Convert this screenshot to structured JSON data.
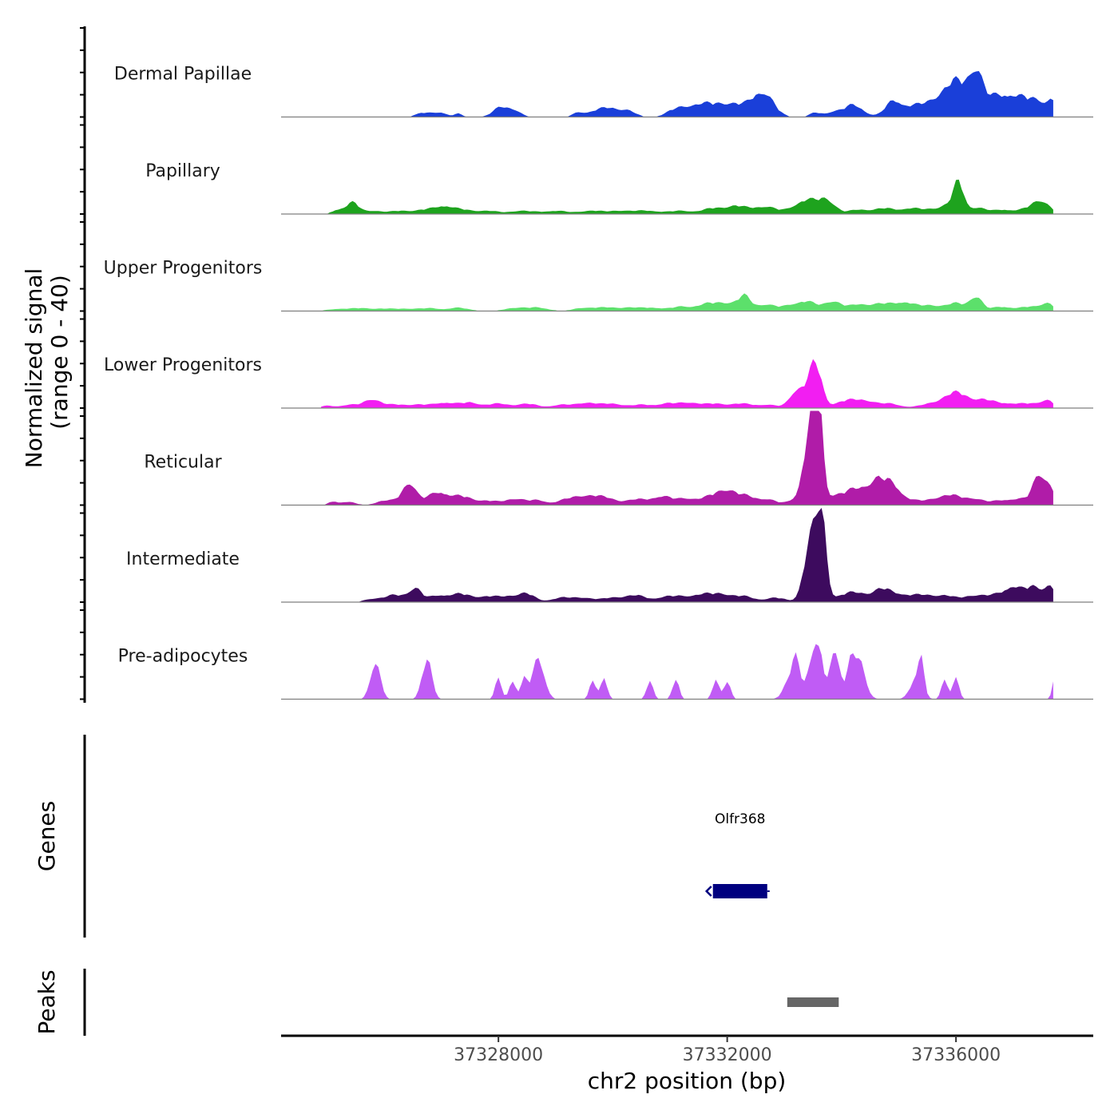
{
  "chart_data": {
    "type": "area",
    "chromosome": "chr2",
    "xlabel": "chr2 position (bp)",
    "ylabel_line1": "Normalized signal",
    "ylabel_line2": "(range 0 - 40)",
    "ylim": [
      0,
      40
    ],
    "xlim": [
      37324200,
      37338400
    ],
    "x_ticks": [
      37328000,
      37332000,
      37336000
    ],
    "x_tick_labels": [
      "37328000",
      "37332000",
      "37336000"
    ],
    "data_start": 37324900,
    "data_end": 37337700,
    "bin_size": 100,
    "tracks": [
      {
        "name": "Dermal Papillae",
        "color": "#1a3fd9",
        "peaks": [
          [
            37326700,
            2,
            200
          ],
          [
            37327000,
            2,
            150
          ],
          [
            37327300,
            1.5,
            100
          ],
          [
            37328050,
            4.5,
            200
          ],
          [
            37328300,
            2.5,
            150
          ],
          [
            37329400,
            2,
            150
          ],
          [
            37329700,
            2.5,
            200
          ],
          [
            37329950,
            3.5,
            200
          ],
          [
            37330250,
            3,
            200
          ],
          [
            37331050,
            2,
            200
          ],
          [
            37331350,
            4,
            300
          ],
          [
            37331750,
            5,
            350
          ],
          [
            37332150,
            4.5,
            300
          ],
          [
            37332650,
            8,
            250
          ],
          [
            37332550,
            4,
            250
          ],
          [
            37333550,
            2,
            150
          ],
          [
            37333850,
            2,
            150
          ],
          [
            37334200,
            5.5,
            250
          ],
          [
            37334900,
            6.5,
            200
          ],
          [
            37335250,
            4,
            300
          ],
          [
            37335800,
            8,
            400
          ],
          [
            37336100,
            11,
            350
          ],
          [
            37336350,
            13,
            150
          ],
          [
            37336700,
            8,
            350
          ],
          [
            37337050,
            6,
            300
          ],
          [
            37337450,
            7,
            300
          ],
          [
            37337700,
            5,
            100
          ]
        ]
      },
      {
        "name": "Papillary",
        "color": "#1ea31e",
        "peaks": [
          [
            37325200,
            2,
            150
          ],
          [
            37325450,
            5,
            150
          ],
          [
            37325800,
            1.5,
            250
          ],
          [
            37326300,
            1.5,
            250
          ],
          [
            37326750,
            2,
            250
          ],
          [
            37327050,
            3,
            200
          ],
          [
            37327350,
            2,
            250
          ],
          [
            37327800,
            1.5,
            250
          ],
          [
            37328400,
            1.5,
            300
          ],
          [
            37329000,
            1.5,
            300
          ],
          [
            37329600,
            1.5,
            250
          ],
          [
            37330100,
            1.5,
            300
          ],
          [
            37330600,
            1.5,
            300
          ],
          [
            37331200,
            1.5,
            300
          ],
          [
            37331750,
            2.5,
            250
          ],
          [
            37332150,
            3.5,
            250
          ],
          [
            37332650,
            3.5,
            300
          ],
          [
            37333250,
            3,
            250
          ],
          [
            37333450,
            4.5,
            250
          ],
          [
            37333750,
            6,
            200
          ],
          [
            37334300,
            2,
            250
          ],
          [
            37334750,
            2.5,
            250
          ],
          [
            37335200,
            2.5,
            250
          ],
          [
            37335600,
            2,
            250
          ],
          [
            37335900,
            4,
            200
          ],
          [
            37336050,
            12,
            120
          ],
          [
            37336350,
            3,
            250
          ],
          [
            37336850,
            2,
            250
          ],
          [
            37337250,
            2,
            200
          ],
          [
            37337500,
            6,
            200
          ]
        ]
      },
      {
        "name": "Upper Progenitors",
        "color": "#5ce06b",
        "peaks": [
          [
            37325200,
            1,
            250
          ],
          [
            37325600,
            1.2,
            250
          ],
          [
            37326000,
            1,
            250
          ],
          [
            37326400,
            1,
            250
          ],
          [
            37326800,
            1.2,
            250
          ],
          [
            37327300,
            1.5,
            250
          ],
          [
            37328300,
            1.5,
            250
          ],
          [
            37328700,
            1.5,
            250
          ],
          [
            37329500,
            1.5,
            250
          ],
          [
            37329900,
            1.5,
            250
          ],
          [
            37330300,
            1.5,
            250
          ],
          [
            37330700,
            1.5,
            250
          ],
          [
            37331200,
            2,
            250
          ],
          [
            37331650,
            3,
            250
          ],
          [
            37332000,
            3.5,
            250
          ],
          [
            37332300,
            6,
            150
          ],
          [
            37332650,
            3,
            250
          ],
          [
            37333100,
            2,
            250
          ],
          [
            37333400,
            4,
            250
          ],
          [
            37333850,
            4.5,
            200
          ],
          [
            37334300,
            3,
            250
          ],
          [
            37334700,
            3,
            250
          ],
          [
            37335100,
            4,
            250
          ],
          [
            37335550,
            2.5,
            250
          ],
          [
            37336000,
            3.5,
            250
          ],
          [
            37336350,
            6.5,
            150
          ],
          [
            37336800,
            2,
            250
          ],
          [
            37337300,
            2,
            250
          ],
          [
            37337600,
            3.5,
            150
          ]
        ]
      },
      {
        "name": "Lower Progenitors",
        "color": "#f21ef2",
        "peaks": [
          [
            37325000,
            1,
            150
          ],
          [
            37325400,
            1.5,
            250
          ],
          [
            37325800,
            4,
            200
          ],
          [
            37326200,
            1.5,
            250
          ],
          [
            37326600,
            1.5,
            250
          ],
          [
            37327050,
            2.5,
            250
          ],
          [
            37327500,
            2.5,
            250
          ],
          [
            37328000,
            2,
            250
          ],
          [
            37328500,
            2,
            250
          ],
          [
            37329100,
            1.5,
            250
          ],
          [
            37329550,
            2.5,
            250
          ],
          [
            37330000,
            2,
            250
          ],
          [
            37330500,
            1.5,
            250
          ],
          [
            37330950,
            2,
            250
          ],
          [
            37331350,
            2.5,
            250
          ],
          [
            37331800,
            2,
            250
          ],
          [
            37332250,
            2,
            250
          ],
          [
            37332700,
            1.5,
            250
          ],
          [
            37333200,
            4,
            150
          ],
          [
            37333350,
            7,
            250
          ],
          [
            37333550,
            17,
            150
          ],
          [
            37334050,
            3,
            250
          ],
          [
            37334400,
            3.5,
            250
          ],
          [
            37334850,
            2,
            250
          ],
          [
            37335500,
            1.5,
            250
          ],
          [
            37335850,
            4,
            250
          ],
          [
            37336100,
            5,
            250
          ],
          [
            37336500,
            3.5,
            250
          ],
          [
            37336900,
            2,
            250
          ],
          [
            37337300,
            2,
            250
          ],
          [
            37337600,
            3.5,
            150
          ]
        ]
      },
      {
        "name": "Reticular",
        "color": "#b01ca8",
        "peaks": [
          [
            37325100,
            1.5,
            100
          ],
          [
            37325350,
            1.5,
            200
          ],
          [
            37326000,
            2,
            200
          ],
          [
            37326350,
            3,
            200
          ],
          [
            37326450,
            8,
            150
          ],
          [
            37326800,
            3,
            250
          ],
          [
            37327000,
            4,
            200
          ],
          [
            37327350,
            4,
            250
          ],
          [
            37327800,
            2,
            250
          ],
          [
            37328300,
            3,
            250
          ],
          [
            37328700,
            2,
            200
          ],
          [
            37329200,
            2.5,
            250
          ],
          [
            37329550,
            4,
            250
          ],
          [
            37329900,
            3,
            250
          ],
          [
            37330400,
            2.5,
            250
          ],
          [
            37330850,
            4,
            250
          ],
          [
            37331300,
            3,
            250
          ],
          [
            37331750,
            4,
            250
          ],
          [
            37332000,
            5,
            200
          ],
          [
            37332300,
            4,
            250
          ],
          [
            37332700,
            2.5,
            250
          ],
          [
            37333150,
            2,
            150
          ],
          [
            37333400,
            18,
            150
          ],
          [
            37333500,
            21,
            150
          ],
          [
            37333600,
            38,
            100
          ],
          [
            37333850,
            4,
            250
          ],
          [
            37334200,
            5,
            250
          ],
          [
            37334450,
            5,
            250
          ],
          [
            37334650,
            8,
            200
          ],
          [
            37334900,
            8,
            200
          ],
          [
            37335200,
            2,
            250
          ],
          [
            37335600,
            2,
            250
          ],
          [
            37335900,
            4,
            250
          ],
          [
            37336300,
            3,
            250
          ],
          [
            37336800,
            2,
            250
          ],
          [
            37337150,
            2.5,
            250
          ],
          [
            37337450,
            13,
            150
          ],
          [
            37337650,
            7,
            150
          ]
        ]
      },
      {
        "name": "Intermediate",
        "color": "#3d0b5e",
        "peaks": [
          [
            37325800,
            1.5,
            200
          ],
          [
            37326100,
            1.5,
            200
          ],
          [
            37326300,
            2.5,
            250
          ],
          [
            37326550,
            5.5,
            150
          ],
          [
            37326950,
            3,
            250
          ],
          [
            37327350,
            3.5,
            250
          ],
          [
            37327800,
            2.5,
            250
          ],
          [
            37328200,
            2.5,
            250
          ],
          [
            37328500,
            3.5,
            200
          ],
          [
            37329100,
            2,
            250
          ],
          [
            37329500,
            2,
            250
          ],
          [
            37330000,
            2,
            250
          ],
          [
            37330400,
            3,
            250
          ],
          [
            37330900,
            2,
            250
          ],
          [
            37331200,
            2,
            250
          ],
          [
            37331550,
            3,
            250
          ],
          [
            37331900,
            3.5,
            250
          ],
          [
            37332300,
            2.5,
            250
          ],
          [
            37332850,
            2,
            250
          ],
          [
            37333400,
            13,
            150
          ],
          [
            37333500,
            18,
            150
          ],
          [
            37333650,
            38,
            120
          ],
          [
            37334050,
            3,
            250
          ],
          [
            37334350,
            3.5,
            250
          ],
          [
            37334700,
            5,
            200
          ],
          [
            37335000,
            3.5,
            250
          ],
          [
            37335400,
            3,
            250
          ],
          [
            37335800,
            3,
            250
          ],
          [
            37336300,
            3,
            250
          ],
          [
            37336700,
            3,
            250
          ],
          [
            37337000,
            6.5,
            200
          ],
          [
            37337350,
            7,
            200
          ],
          [
            37337650,
            7,
            150
          ]
        ]
      },
      {
        "name": "Pre-adipocytes",
        "color": "#c05cf5",
        "peaks": [
          [
            37325850,
            18,
            120
          ],
          [
            37326750,
            18,
            120
          ],
          [
            37328000,
            9,
            80
          ],
          [
            37328250,
            9,
            80
          ],
          [
            37328450,
            9,
            80
          ],
          [
            37328700,
            18,
            150
          ],
          [
            37329650,
            9,
            80
          ],
          [
            37329850,
            9,
            80
          ],
          [
            37330650,
            9,
            80
          ],
          [
            37331100,
            9,
            80
          ],
          [
            37331800,
            9,
            80
          ],
          [
            37332000,
            9,
            80
          ],
          [
            37333100,
            9,
            150
          ],
          [
            37333200,
            18,
            80
          ],
          [
            37333450,
            13,
            150
          ],
          [
            37333600,
            22,
            100
          ],
          [
            37333850,
            18,
            100
          ],
          [
            37333950,
            9,
            150
          ],
          [
            37334300,
            20,
            150
          ],
          [
            37334150,
            9,
            80
          ],
          [
            37335300,
            9,
            150
          ],
          [
            37335400,
            16,
            60
          ],
          [
            37335800,
            9,
            80
          ],
          [
            37336000,
            9,
            80
          ],
          [
            37337700,
            9,
            40
          ]
        ]
      }
    ],
    "genes": [
      {
        "name": "Olfr368",
        "start": 37331750,
        "end": 37332700,
        "strand": "-",
        "color": "#00007f"
      }
    ],
    "peaks_track": [
      {
        "start": 37333050,
        "end": 37333950,
        "color": "#666666"
      }
    ],
    "panels": {
      "genes_label": "Genes",
      "peaks_label": "Peaks"
    }
  }
}
